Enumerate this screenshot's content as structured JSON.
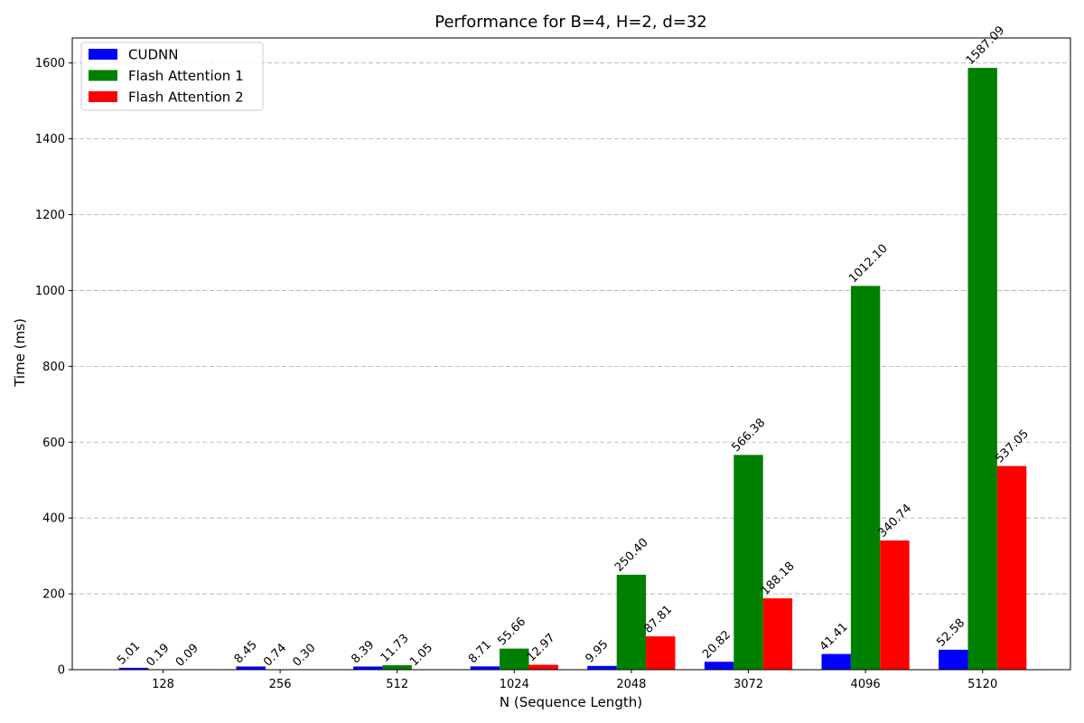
{
  "chart_data": {
    "type": "bar",
    "title": "Performance for B=4, H=2, d=32",
    "xlabel": "N (Sequence Length)",
    "ylabel": "Time (ms)",
    "categories": [
      "128",
      "256",
      "512",
      "1024",
      "2048",
      "3072",
      "4096",
      "5120"
    ],
    "ylim": [
      0,
      1666
    ],
    "yticks": [
      0,
      200,
      400,
      600,
      800,
      1000,
      1200,
      1400,
      1600
    ],
    "grid": "y-dashed",
    "legend_position": "top-left",
    "series": [
      {
        "name": "CUDNN",
        "color": "#0000ff",
        "values": [
          5.01,
          8.45,
          8.39,
          8.71,
          9.95,
          20.82,
          41.41,
          52.58
        ],
        "labels": [
          "5.01",
          "8.45",
          "8.39",
          "8.71",
          "9.95",
          "20.82",
          "41.41",
          "52.58"
        ]
      },
      {
        "name": "Flash Attention 1",
        "color": "#008000",
        "values": [
          0.19,
          0.74,
          11.73,
          55.66,
          250.4,
          566.38,
          1012.1,
          1587.09
        ],
        "labels": [
          "0.19",
          "0.74",
          "11.73",
          "55.66",
          "250.40",
          "566.38",
          "1012.10",
          "1587.09"
        ]
      },
      {
        "name": "Flash Attention 2",
        "color": "#ff0000",
        "values": [
          0.09,
          0.3,
          1.05,
          12.97,
          87.81,
          188.18,
          340.74,
          537.05
        ],
        "labels": [
          "0.09",
          "0.30",
          "1.05",
          "12.97",
          "87.81",
          "188.18",
          "340.74",
          "537.05"
        ]
      }
    ]
  }
}
